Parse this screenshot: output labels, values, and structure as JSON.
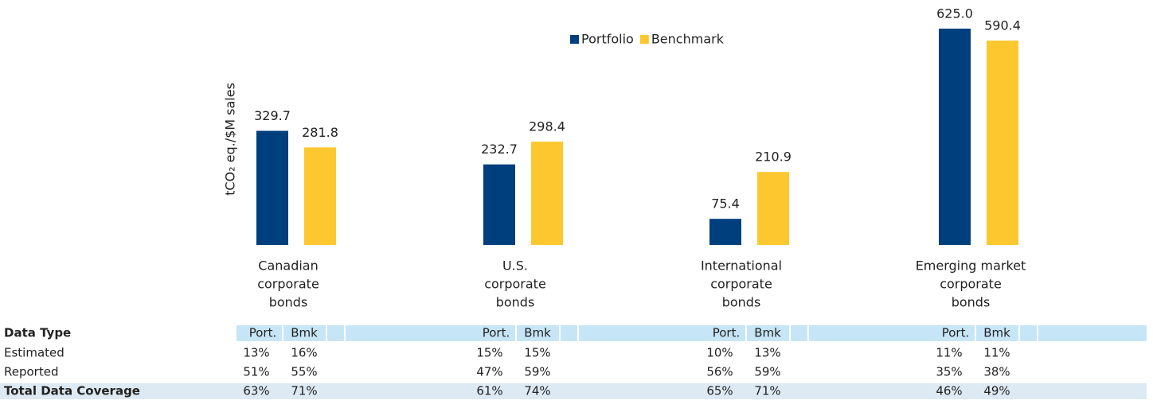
{
  "chart_data": {
    "type": "bar",
    "ylabel": "tCO₂ eq./$M sales",
    "categories": [
      [
        "Canadian",
        "corporate",
        "bonds"
      ],
      [
        "U.S.",
        "corporate",
        "bonds"
      ],
      [
        "International",
        "corporate",
        "bonds"
      ],
      [
        "Emerging market",
        "corporate",
        "bonds"
      ]
    ],
    "series": [
      {
        "name": "Portfolio",
        "color": "#003f7d",
        "values": [
          329.7,
          232.7,
          75.4,
          625
        ],
        "value_labels": [
          "329.7",
          "232.7",
          "75.4",
          "625.0"
        ]
      },
      {
        "name": "Benchmark",
        "color": "#fdc82f",
        "values": [
          281.8,
          298.4,
          210.9,
          590.4
        ],
        "value_labels": [
          "281.8",
          "298.4",
          "210.9",
          "590.4"
        ]
      }
    ],
    "ylim": [
      0,
      625
    ],
    "legend": "top"
  },
  "table": {
    "header": [
      "Data Type",
      "Port.",
      "Bmk",
      "Port.",
      "Bmk",
      "Port.",
      "Bmk",
      "Port.",
      "Bmk"
    ],
    "rows": [
      [
        "Estimated",
        "13%",
        "16%",
        "15%",
        "15%",
        "10%",
        "13%",
        "11%",
        "11%"
      ],
      [
        "Reported",
        "51%",
        "55%",
        "47%",
        "59%",
        "56%",
        "59%",
        "35%",
        "38%"
      ],
      [
        "Total Data Coverage",
        "63%",
        "71%",
        "61%",
        "74%",
        "65%",
        "71%",
        "46%",
        "49%"
      ]
    ]
  }
}
